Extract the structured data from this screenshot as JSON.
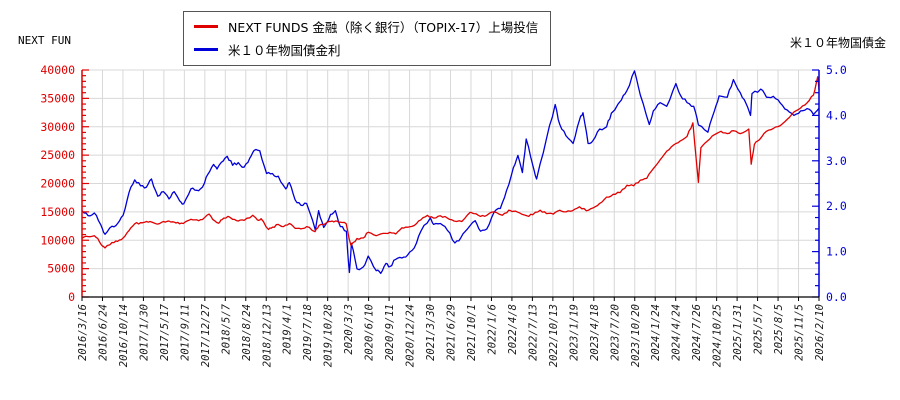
{
  "header": {
    "left_label": "NEXT FUN",
    "right_label": "米１０年物国債金"
  },
  "chart_data": {
    "type": "line",
    "title": "",
    "legend_position": "top-center",
    "grid": true,
    "x_tick_labels": [
      "2016/3/16",
      "2016/6/24",
      "2016/10/14",
      "2017/1/30",
      "2017/5/17",
      "2017/9/11",
      "2017/12/27",
      "2018/5/7",
      "2018/8/24",
      "2018/12/13",
      "2019/4/1",
      "2019/7/18",
      "2019/10/28",
      "2020/3/3",
      "2020/6/10",
      "2020/9/11",
      "2020/12/24",
      "2021/3/30",
      "2021/6/29",
      "2021/10/1",
      "2022/1/6",
      "2022/4/8",
      "2022/7/13",
      "2022/10/13",
      "2023/1/19",
      "2023/4/18",
      "2023/7/20",
      "2023/10/20",
      "2024/1/24",
      "2024/4/24",
      "2024/7/26",
      "2024/10/25",
      "2025/1/31",
      "2025/5/7",
      "2025/8/5",
      "2025/11/5",
      "2026/2/10"
    ],
    "left_axis": {
      "min": 0,
      "max": 40000,
      "major_step": 5000,
      "minor_step": 1000,
      "label_color": "#e00000",
      "tick_labels": [
        "0",
        "5000",
        "10000",
        "15000",
        "20000",
        "25000",
        "30000",
        "35000",
        "40000"
      ]
    },
    "right_axis": {
      "min": 0,
      "max": 5,
      "major_step": 1,
      "minor_step": 0.25,
      "label_color": "#0000d8",
      "tick_labels": [
        "0.0",
        "1.0",
        "2.0",
        "3.0",
        "4.0",
        "5.0"
      ]
    },
    "series": [
      {
        "name": "NEXT FUNDS 金融（除く銀行）（TOPIX-17）上場投信",
        "axis": "left",
        "color": "#e00000",
        "points": [
          [
            "2016/3/16",
            10400
          ],
          [
            "2016/4",
            10650
          ],
          [
            "2016/5",
            10800
          ],
          [
            "2016/6/1",
            10300
          ],
          [
            "2016/6/27",
            8900
          ],
          [
            "2016/7/8",
            8650
          ],
          [
            "2016/8",
            9600
          ],
          [
            "2016/9",
            9800
          ],
          [
            "2016/10",
            10400
          ],
          [
            "2016/11",
            11700
          ],
          [
            "2016/12",
            12900
          ],
          [
            "2017/1",
            13100
          ],
          [
            "2017/2",
            13300
          ],
          [
            "2017/3",
            13200
          ],
          [
            "2017/4",
            12850
          ],
          [
            "2017/5",
            13300
          ],
          [
            "2017/6",
            13400
          ],
          [
            "2017/7",
            13200
          ],
          [
            "2017/8",
            12900
          ],
          [
            "2017/9",
            13200
          ],
          [
            "2017/10",
            13700
          ],
          [
            "2017/11",
            13600
          ],
          [
            "2017/12",
            13650
          ],
          [
            "2018/1/23",
            14600
          ],
          [
            "2018/2",
            13700
          ],
          [
            "2018/3/26",
            13000
          ],
          [
            "2018/4",
            13600
          ],
          [
            "2018/5/21",
            14200
          ],
          [
            "2018/6",
            13700
          ],
          [
            "2018/7",
            13400
          ],
          [
            "2018/8",
            13500
          ],
          [
            "2018/10/1",
            14400
          ],
          [
            "2018/10/25",
            13600
          ],
          [
            "2018/11",
            13800
          ],
          [
            "2018/12/25",
            11900
          ],
          [
            "2019/1",
            12300
          ],
          [
            "2019/2",
            12800
          ],
          [
            "2019/3",
            12400
          ],
          [
            "2019/4",
            12950
          ],
          [
            "2019/5",
            12100
          ],
          [
            "2019/6",
            12000
          ],
          [
            "2019/7",
            12400
          ],
          [
            "2019/8/26",
            11500
          ],
          [
            "2019/9",
            12600
          ],
          [
            "2019/10",
            12900
          ],
          [
            "2019/11",
            13300
          ],
          [
            "2019/12",
            13400
          ],
          [
            "2020/1",
            13200
          ],
          [
            "2020/2/20",
            12900
          ],
          [
            "2020/3/17",
            9100
          ],
          [
            "2020/4",
            10300
          ],
          [
            "2020/5",
            10400
          ],
          [
            "2020/6/8",
            11400
          ],
          [
            "2020/7",
            10800
          ],
          [
            "2020/8",
            11200
          ],
          [
            "2020/9",
            11400
          ],
          [
            "2020/10",
            11100
          ],
          [
            "2020/11",
            12200
          ],
          [
            "2020/12",
            12300
          ],
          [
            "2021/1",
            12600
          ],
          [
            "2021/2",
            13600
          ],
          [
            "2021/3/18",
            14400
          ],
          [
            "2021/4",
            13900
          ],
          [
            "2021/5",
            14300
          ],
          [
            "2021/6",
            13900
          ],
          [
            "2021/7",
            13400
          ],
          [
            "2021/8/20",
            13300
          ],
          [
            "2021/9/27",
            14900
          ],
          [
            "2021/10",
            14700
          ],
          [
            "2021/11",
            14200
          ],
          [
            "2021/12",
            14400
          ],
          [
            "2022/1",
            15000
          ],
          [
            "2022/2/24",
            14400
          ],
          [
            "2022/3/25",
            15300
          ],
          [
            "2022/4",
            15100
          ],
          [
            "2022/5",
            14800
          ],
          [
            "2022/6/17",
            14300
          ],
          [
            "2022/7",
            14500
          ],
          [
            "2022/8/17",
            15300
          ],
          [
            "2022/9",
            14700
          ],
          [
            "2022/10",
            14600
          ],
          [
            "2022/11",
            15300
          ],
          [
            "2022/12",
            15000
          ],
          [
            "2023/1",
            15200
          ],
          [
            "2023/2",
            15900
          ],
          [
            "2023/3/16",
            15200
          ],
          [
            "2023/4",
            15700
          ],
          [
            "2023/5",
            16500
          ],
          [
            "2023/6",
            17600
          ],
          [
            "2023/7",
            18100
          ],
          [
            "2023/8",
            18400
          ],
          [
            "2023/9/15",
            19700
          ],
          [
            "2023/10",
            19600
          ],
          [
            "2023/11",
            20600
          ],
          [
            "2023/12",
            20900
          ],
          [
            "2024/1",
            22600
          ],
          [
            "2024/2",
            24200
          ],
          [
            "2024/3",
            25700
          ],
          [
            "2024/4",
            26800
          ],
          [
            "2024/5",
            27500
          ],
          [
            "2024/6",
            28300
          ],
          [
            "2024/7/11",
            30700
          ],
          [
            "2024/8/5",
            20200
          ],
          [
            "2024/8/16",
            26300
          ],
          [
            "2024/9",
            27500
          ],
          [
            "2024/10",
            28600
          ],
          [
            "2024/11",
            29200
          ],
          [
            "2024/12",
            28800
          ],
          [
            "2025/1",
            29300
          ],
          [
            "2025/2",
            28800
          ],
          [
            "2025/3/27",
            29600
          ],
          [
            "2025/4/7",
            23400
          ],
          [
            "2025/4/22",
            26900
          ],
          [
            "2025/5",
            27700
          ],
          [
            "2025/6",
            29200
          ],
          [
            "2025/7",
            29700
          ],
          [
            "2025/8",
            30200
          ],
          [
            "2025/9",
            31300
          ],
          [
            "2025/10",
            32600
          ],
          [
            "2025/11",
            33300
          ],
          [
            "2025/12",
            34200
          ],
          [
            "2026/1",
            35600
          ],
          [
            "2026/2/4",
            38800
          ],
          [
            "2026/2/10",
            36500
          ]
        ]
      },
      {
        "name": "米１０年物国債金利",
        "axis": "right",
        "color": "#0000d8",
        "points": [
          [
            "2016/3/16",
            1.9
          ],
          [
            "2016/4",
            1.79
          ],
          [
            "2016/5",
            1.85
          ],
          [
            "2016/6",
            1.6
          ],
          [
            "2016/7/8",
            1.38
          ],
          [
            "2016/8",
            1.56
          ],
          [
            "2016/9",
            1.62
          ],
          [
            "2016/10",
            1.8
          ],
          [
            "2016/11",
            2.3
          ],
          [
            "2016/12/15",
            2.58
          ],
          [
            "2017/1",
            2.45
          ],
          [
            "2017/2",
            2.42
          ],
          [
            "2017/3/13",
            2.6
          ],
          [
            "2017/4",
            2.22
          ],
          [
            "2017/5",
            2.32
          ],
          [
            "2017/6",
            2.16
          ],
          [
            "2017/7",
            2.32
          ],
          [
            "2017/8",
            2.12
          ],
          [
            "2017/9/7",
            2.05
          ],
          [
            "2017/10",
            2.38
          ],
          [
            "2017/11",
            2.35
          ],
          [
            "2017/12",
            2.42
          ],
          [
            "2018/1",
            2.7
          ],
          [
            "2018/2/21",
            2.92
          ],
          [
            "2018/3",
            2.82
          ],
          [
            "2018/4/25",
            3.0
          ],
          [
            "2018/5/17",
            3.1
          ],
          [
            "2018/6",
            2.9
          ],
          [
            "2018/7",
            2.96
          ],
          [
            "2018/8",
            2.86
          ],
          [
            "2018/9",
            3.06
          ],
          [
            "2018/10/8",
            3.23
          ],
          [
            "2018/11/8",
            3.22
          ],
          [
            "2018/12",
            2.72
          ],
          [
            "2019/1",
            2.72
          ],
          [
            "2019/2",
            2.66
          ],
          [
            "2019/3/27",
            2.38
          ],
          [
            "2019/4",
            2.52
          ],
          [
            "2019/5",
            2.14
          ],
          [
            "2019/6",
            2.02
          ],
          [
            "2019/7",
            2.06
          ],
          [
            "2019/8/28",
            1.47
          ],
          [
            "2019/9/13",
            1.9
          ],
          [
            "2019/10/8",
            1.53
          ],
          [
            "2019/11",
            1.82
          ],
          [
            "2019/12",
            1.9
          ],
          [
            "2020/1",
            1.55
          ],
          [
            "2020/2/21",
            1.45
          ],
          [
            "2020/3/9",
            0.54
          ],
          [
            "2020/3/19",
            1.18
          ],
          [
            "2020/4",
            0.62
          ],
          [
            "2020/5",
            0.66
          ],
          [
            "2020/6/8",
            0.9
          ],
          [
            "2020/7",
            0.58
          ],
          [
            "2020/8/4",
            0.52
          ],
          [
            "2020/8/28",
            0.74
          ],
          [
            "2020/9",
            0.67
          ],
          [
            "2020/10",
            0.83
          ],
          [
            "2020/11",
            0.86
          ],
          [
            "2020/12",
            0.93
          ],
          [
            "2021/1",
            1.08
          ],
          [
            "2021/2",
            1.45
          ],
          [
            "2021/3/31",
            1.74
          ],
          [
            "2021/4",
            1.6
          ],
          [
            "2021/5",
            1.62
          ],
          [
            "2021/6",
            1.47
          ],
          [
            "2021/7/19",
            1.19
          ],
          [
            "2021/8",
            1.3
          ],
          [
            "2021/9",
            1.5
          ],
          [
            "2021/10/21",
            1.68
          ],
          [
            "2021/11",
            1.45
          ],
          [
            "2021/12",
            1.5
          ],
          [
            "2022/1/18",
            1.87
          ],
          [
            "2022/2",
            1.95
          ],
          [
            "2022/3",
            2.35
          ],
          [
            "2022/4",
            2.85
          ],
          [
            "2022/5/6",
            3.12
          ],
          [
            "2022/5/27",
            2.74
          ],
          [
            "2022/6/14",
            3.48
          ],
          [
            "2022/7",
            2.9
          ],
          [
            "2022/8/1",
            2.6
          ],
          [
            "2022/9",
            3.5
          ],
          [
            "2022/10/24",
            4.24
          ],
          [
            "2022/11",
            3.8
          ],
          [
            "2022/12",
            3.55
          ],
          [
            "2023/1/18",
            3.38
          ],
          [
            "2023/2",
            3.9
          ],
          [
            "2023/3/2",
            4.06
          ],
          [
            "2023/3/24",
            3.38
          ],
          [
            "2023/4",
            3.45
          ],
          [
            "2023/5",
            3.7
          ],
          [
            "2023/6",
            3.75
          ],
          [
            "2023/7/7",
            4.05
          ],
          [
            "2023/8/21",
            4.34
          ],
          [
            "2023/9",
            4.55
          ],
          [
            "2023/10/19",
            4.98
          ],
          [
            "2023/11",
            4.45
          ],
          [
            "2023/12/27",
            3.8
          ],
          [
            "2024/1",
            4.1
          ],
          [
            "2024/2",
            4.28
          ],
          [
            "2024/3",
            4.2
          ],
          [
            "2024/4/25",
            4.7
          ],
          [
            "2024/5",
            4.45
          ],
          [
            "2024/6",
            4.28
          ],
          [
            "2024/7",
            4.2
          ],
          [
            "2024/8/5",
            3.79
          ],
          [
            "2024/9/16",
            3.63
          ],
          [
            "2024/10",
            4.1
          ],
          [
            "2024/11/6",
            4.43
          ],
          [
            "2024/12",
            4.4
          ],
          [
            "2025/1/13",
            4.79
          ],
          [
            "2025/2",
            4.5
          ],
          [
            "2025/3",
            4.25
          ],
          [
            "2025/4/4",
            4.0
          ],
          [
            "2025/4/11",
            4.48
          ],
          [
            "2025/5/21",
            4.58
          ],
          [
            "2025/6",
            4.4
          ],
          [
            "2025/7",
            4.42
          ],
          [
            "2025/8",
            4.27
          ],
          [
            "2025/9",
            4.12
          ],
          [
            "2025/10",
            4.0
          ],
          [
            "2025/11",
            4.1
          ],
          [
            "2025/12",
            4.15
          ],
          [
            "2026/1",
            4.02
          ],
          [
            "2026/2/10",
            4.16
          ]
        ]
      }
    ],
    "render_hints": {
      "noise_amp": {
        "left": 170,
        "right": 0.035
      },
      "subdivide": 3
    }
  }
}
